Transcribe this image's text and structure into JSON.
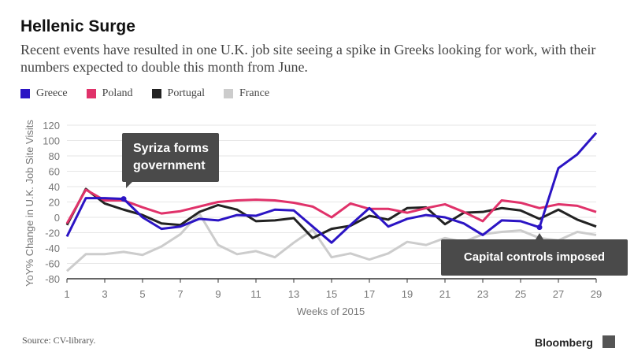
{
  "header": {
    "title": "Hellenic Surge",
    "subtitle": "Recent events have resulted in one U.K. job site seeing a spike in Greeks looking for work, with their numbers expected to double this month from June."
  },
  "footer": {
    "source": "Source: CV-library.",
    "brand": "Bloomberg"
  },
  "chart_data": {
    "type": "line",
    "xlabel": "Weeks of 2015",
    "ylabel": "YoY% Change in U.K. Job Site Visits",
    "xlim": [
      1,
      29
    ],
    "ylim": [
      -80,
      120
    ],
    "xticks": [
      "1",
      "3",
      "5",
      "7",
      "9",
      "11",
      "13",
      "15",
      "17",
      "19",
      "21",
      "23",
      "25",
      "27",
      "29"
    ],
    "yticks": [
      "120",
      "100",
      "80",
      "60",
      "40",
      "20",
      "0",
      "-20",
      "-40",
      "-60",
      "-80"
    ],
    "grid": true,
    "legend": "top-left",
    "x": [
      1,
      2,
      3,
      4,
      5,
      6,
      7,
      8,
      9,
      10,
      11,
      12,
      13,
      14,
      15,
      16,
      17,
      18,
      19,
      20,
      21,
      22,
      23,
      24,
      25,
      26,
      27,
      28,
      29
    ],
    "series": [
      {
        "name": "Greece",
        "color": "#2b14c4",
        "values": [
          -25,
          25,
          25,
          24,
          0,
          -15,
          -12,
          -2,
          -4,
          3,
          2,
          10,
          9,
          -12,
          -33,
          -10,
          12,
          -12,
          -2,
          3,
          0,
          -8,
          -23,
          -4,
          -5,
          -13,
          64,
          82,
          110
        ]
      },
      {
        "name": "Poland",
        "color": "#e0326a",
        "values": [
          -8,
          36,
          22,
          22,
          13,
          5,
          8,
          14,
          20,
          22,
          23,
          22,
          19,
          14,
          0,
          18,
          11,
          11,
          6,
          12,
          17,
          7,
          -5,
          22,
          19,
          12,
          17,
          15,
          7
        ]
      },
      {
        "name": "Portugal",
        "color": "#222222",
        "values": [
          -10,
          37,
          18,
          10,
          3,
          -8,
          -10,
          7,
          16,
          10,
          -5,
          -4,
          -1,
          -27,
          -15,
          -11,
          2,
          -3,
          12,
          13,
          -9,
          6,
          7,
          12,
          9,
          -2,
          10,
          -3,
          -12
        ]
      },
      {
        "name": "France",
        "color": "#cccccc",
        "values": [
          -70,
          -48,
          -48,
          -45,
          -49,
          -38,
          -22,
          5,
          -36,
          -48,
          -44,
          -52,
          -33,
          -16,
          -52,
          -47,
          -55,
          -47,
          -32,
          -36,
          -27,
          -32,
          -22,
          -19,
          -17,
          -27,
          -30,
          -19,
          -23
        ]
      }
    ],
    "annotations": [
      {
        "text": "Syriza forms government",
        "x": 4,
        "series": "Greece"
      },
      {
        "text": "Capital controls imposed",
        "x": 26,
        "series": "Greece"
      }
    ]
  }
}
